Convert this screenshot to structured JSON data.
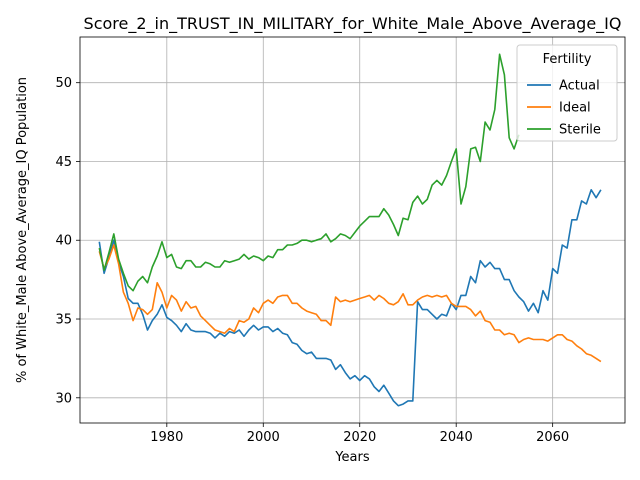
{
  "chart_data": {
    "type": "line",
    "title": "Score_2_in_TRUST_IN_MILITARY_for_White_Male_Above_Average_IQ",
    "xlabel": "Years",
    "ylabel": "% of White_Male Above_Average_IQ Population",
    "xlim": [
      1962,
      2075
    ],
    "ylim": [
      28.4,
      52.9
    ],
    "xticks": [
      1980,
      2000,
      2020,
      2040,
      2060
    ],
    "yticks": [
      30,
      35,
      40,
      45,
      50
    ],
    "grid": true,
    "legend": {
      "title": "Fertility",
      "position": "top-right"
    },
    "series": [
      {
        "name": "Actual",
        "color": "#1f77b4",
        "x": [
          1966,
          1967,
          1968,
          1969,
          1970,
          1971,
          1972,
          1973,
          1974,
          1975,
          1976,
          1977,
          1978,
          1979,
          1980,
          1981,
          1982,
          1983,
          1984,
          1985,
          1986,
          1987,
          1988,
          1989,
          1990,
          1991,
          1992,
          1993,
          1994,
          1995,
          1996,
          1997,
          1998,
          1999,
          2000,
          2001,
          2002,
          2003,
          2004,
          2005,
          2006,
          2007,
          2008,
          2009,
          2010,
          2011,
          2012,
          2013,
          2014,
          2015,
          2016,
          2017,
          2018,
          2019,
          2020,
          2021,
          2022,
          2023,
          2024,
          2025,
          2026,
          2027,
          2028,
          2029,
          2030,
          2031,
          2032,
          2033,
          2034,
          2035,
          2036,
          2037,
          2038,
          2039,
          2040,
          2041,
          2042,
          2043,
          2044,
          2045,
          2046,
          2047,
          2048,
          2049,
          2050,
          2051,
          2052,
          2053,
          2054,
          2055,
          2056,
          2057,
          2058,
          2059,
          2060,
          2061,
          2062,
          2063,
          2064,
          2065,
          2066,
          2067,
          2068,
          2069,
          2070
        ],
        "values": [
          39.9,
          37.9,
          38.9,
          40.0,
          38.6,
          37.7,
          36.3,
          36.0,
          36.0,
          35.3,
          34.3,
          34.9,
          35.3,
          35.9,
          35.1,
          34.9,
          34.6,
          34.2,
          34.7,
          34.3,
          34.2,
          34.2,
          34.2,
          34.1,
          33.8,
          34.1,
          33.9,
          34.2,
          34.1,
          34.3,
          33.9,
          34.3,
          34.6,
          34.3,
          34.5,
          34.5,
          34.2,
          34.4,
          34.1,
          34.0,
          33.5,
          33.4,
          33.0,
          32.8,
          32.9,
          32.5,
          32.5,
          32.5,
          32.4,
          31.8,
          32.1,
          31.6,
          31.2,
          31.4,
          31.1,
          31.4,
          31.2,
          30.7,
          30.4,
          30.8,
          30.3,
          29.8,
          29.5,
          29.6,
          29.8,
          29.8,
          36.1,
          35.6,
          35.6,
          35.3,
          35.0,
          35.3,
          35.2,
          36.0,
          35.6,
          36.5,
          36.5,
          37.7,
          37.3,
          38.7,
          38.3,
          38.6,
          38.2,
          38.2,
          37.5,
          37.5,
          36.8,
          36.4,
          36.1,
          35.5,
          36.0,
          35.4,
          36.8,
          36.2,
          38.2,
          37.9,
          39.7,
          39.5,
          41.3,
          41.3,
          42.5,
          42.3,
          43.2,
          42.7,
          43.2
        ]
      },
      {
        "name": "Ideal",
        "color": "#ff7f0e",
        "x": [
          1966,
          1967,
          1968,
          1969,
          1970,
          1971,
          1972,
          1973,
          1974,
          1975,
          1976,
          1977,
          1978,
          1979,
          1980,
          1981,
          1982,
          1983,
          1984,
          1985,
          1986,
          1987,
          1988,
          1989,
          1990,
          1991,
          1992,
          1993,
          1994,
          1995,
          1996,
          1997,
          1998,
          1999,
          2000,
          2001,
          2002,
          2003,
          2004,
          2005,
          2006,
          2007,
          2008,
          2009,
          2010,
          2011,
          2012,
          2013,
          2014,
          2015,
          2016,
          2017,
          2018,
          2019,
          2020,
          2021,
          2022,
          2023,
          2024,
          2025,
          2026,
          2027,
          2028,
          2029,
          2030,
          2031,
          2032,
          2033,
          2034,
          2035,
          2036,
          2037,
          2038,
          2039,
          2040,
          2041,
          2042,
          2043,
          2044,
          2045,
          2046,
          2047,
          2048,
          2049,
          2050,
          2051,
          2052,
          2053,
          2054,
          2055,
          2056,
          2057,
          2058,
          2059,
          2060,
          2061,
          2062,
          2063,
          2064,
          2065,
          2066,
          2067,
          2068,
          2069,
          2070
        ],
        "values": [
          39.3,
          38.2,
          38.8,
          39.7,
          38.5,
          36.7,
          36.0,
          34.9,
          35.7,
          35.6,
          35.3,
          35.6,
          37.3,
          36.7,
          35.7,
          36.5,
          36.2,
          35.5,
          36.1,
          35.7,
          35.8,
          35.2,
          34.9,
          34.6,
          34.3,
          34.2,
          34.1,
          34.4,
          34.2,
          34.9,
          34.8,
          35.0,
          35.7,
          35.4,
          36.0,
          36.2,
          36.0,
          36.4,
          36.5,
          36.5,
          36.0,
          36.0,
          35.7,
          35.5,
          35.4,
          35.3,
          34.9,
          34.9,
          34.6,
          36.4,
          36.1,
          36.2,
          36.1,
          36.2,
          36.3,
          36.4,
          36.5,
          36.2,
          36.5,
          36.3,
          36.0,
          35.9,
          36.1,
          36.6,
          35.9,
          35.9,
          36.2,
          36.4,
          36.5,
          36.4,
          36.5,
          36.4,
          36.5,
          36.0,
          35.8,
          35.8,
          35.8,
          35.6,
          35.2,
          35.5,
          34.9,
          34.8,
          34.3,
          34.3,
          34.0,
          34.1,
          34.0,
          33.5,
          33.7,
          33.8,
          33.7,
          33.7,
          33.7,
          33.6,
          33.8,
          34.0,
          34.0,
          33.7,
          33.6,
          33.3,
          33.1,
          32.8,
          32.7,
          32.5,
          32.3
        ]
      },
      {
        "name": "Sterile",
        "color": "#2ca02c",
        "x": [
          1966,
          1967,
          1968,
          1969,
          1970,
          1971,
          1972,
          1973,
          1974,
          1975,
          1976,
          1977,
          1978,
          1979,
          1980,
          1981,
          1982,
          1983,
          1984,
          1985,
          1986,
          1987,
          1988,
          1989,
          1990,
          1991,
          1992,
          1993,
          1994,
          1995,
          1996,
          1997,
          1998,
          1999,
          2000,
          2001,
          2002,
          2003,
          2004,
          2005,
          2006,
          2007,
          2008,
          2009,
          2010,
          2011,
          2012,
          2013,
          2014,
          2015,
          2016,
          2017,
          2018,
          2019,
          2020,
          2021,
          2022,
          2023,
          2024,
          2025,
          2026,
          2027,
          2028,
          2029,
          2030,
          2031,
          2032,
          2033,
          2034,
          2035,
          2036,
          2037,
          2038,
          2039,
          2040,
          2041,
          2042,
          2043,
          2044,
          2045,
          2046,
          2047,
          2048,
          2049,
          2050,
          2051,
          2052,
          2053
        ],
        "values": [
          39.5,
          38.1,
          39.2,
          40.4,
          38.8,
          37.9,
          37.1,
          36.8,
          37.4,
          37.7,
          37.3,
          38.3,
          39.0,
          39.9,
          38.9,
          39.1,
          38.3,
          38.2,
          38.7,
          38.7,
          38.3,
          38.3,
          38.6,
          38.5,
          38.3,
          38.3,
          38.7,
          38.6,
          38.7,
          38.8,
          39.1,
          38.8,
          39.0,
          38.9,
          38.7,
          39.0,
          38.9,
          39.4,
          39.4,
          39.7,
          39.7,
          39.8,
          40.0,
          40.0,
          39.9,
          40.0,
          40.1,
          40.4,
          39.9,
          40.1,
          40.4,
          40.3,
          40.1,
          40.5,
          40.9,
          41.2,
          41.5,
          41.5,
          41.5,
          42.0,
          41.6,
          41.0,
          40.3,
          41.4,
          41.3,
          42.4,
          42.8,
          42.3,
          42.6,
          43.5,
          43.8,
          43.5,
          44.1,
          45.0,
          45.8,
          42.3,
          43.4,
          45.8,
          45.9,
          45.0,
          47.5,
          47.0,
          48.3,
          51.8,
          50.5,
          46.5,
          45.8,
          46.7
        ]
      }
    ]
  }
}
